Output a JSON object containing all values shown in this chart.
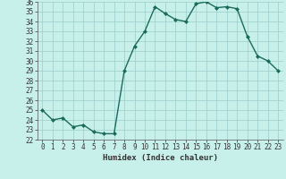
{
  "x": [
    0,
    1,
    2,
    3,
    4,
    5,
    6,
    7,
    8,
    9,
    10,
    11,
    12,
    13,
    14,
    15,
    16,
    17,
    18,
    19,
    20,
    21,
    22,
    23
  ],
  "y": [
    25.0,
    24.0,
    24.2,
    23.3,
    23.5,
    22.8,
    22.6,
    22.6,
    29.0,
    31.5,
    33.0,
    35.5,
    34.8,
    34.2,
    34.0,
    35.8,
    36.0,
    35.4,
    35.5,
    35.3,
    32.5,
    30.5,
    30.0,
    29.0
  ],
  "xlabel": "Humidex (Indice chaleur)",
  "ylim": [
    22,
    36
  ],
  "xlim": [
    -0.5,
    23.5
  ],
  "yticks": [
    22,
    23,
    24,
    25,
    26,
    27,
    28,
    29,
    30,
    31,
    32,
    33,
    34,
    35,
    36
  ],
  "xticks": [
    0,
    1,
    2,
    3,
    4,
    5,
    6,
    7,
    8,
    9,
    10,
    11,
    12,
    13,
    14,
    15,
    16,
    17,
    18,
    19,
    20,
    21,
    22,
    23
  ],
  "line_color": "#1a6b5a",
  "bg_color": "#c8f0eb",
  "grid_color": "#99cccc",
  "marker": "D",
  "marker_size": 2,
  "linewidth": 1.0,
  "xlabel_fontsize": 6.5,
  "tick_fontsize": 5.5
}
